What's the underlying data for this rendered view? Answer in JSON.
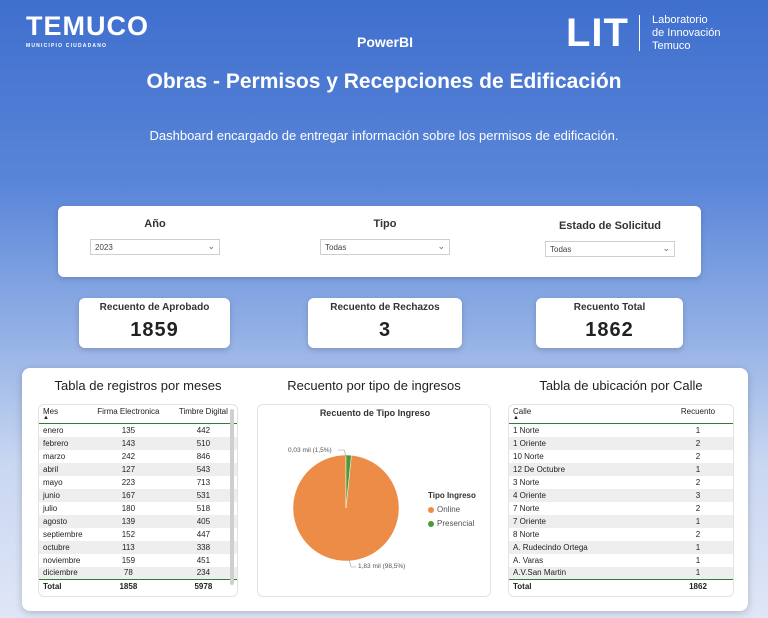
{
  "header": {
    "municipality_logo_text": "TEMUCO",
    "municipality_logo_sub": "MUNICIPIO CIUDADANO",
    "app_label": "PowerBI",
    "lit_logo": "LIT",
    "lit_text_1": "Laboratorio",
    "lit_text_2": "de Innovación",
    "lit_text_3": "Temuco",
    "title": "Obras - Permisos  y Recepciones de Edificación",
    "subtitle": "Dashboard encargado de entregar información sobre los permisos de edificación."
  },
  "filters": {
    "year": {
      "label": "Año",
      "value": "2023"
    },
    "type": {
      "label": "Tipo",
      "value": "Todas"
    },
    "status": {
      "label": "Estado de Solicitud",
      "value": "Todas"
    }
  },
  "kpis": {
    "approved": {
      "label": "Recuento de Aprobado",
      "value": "1859"
    },
    "rejected": {
      "label": "Recuento de Rechazos",
      "value": "3"
    },
    "total": {
      "label": "Recuento Total",
      "value": "1862"
    }
  },
  "months_table": {
    "title": "Tabla de registros por meses",
    "headers": [
      "Mes",
      "Firma Electronica",
      "Timbre Digital"
    ],
    "rows": [
      [
        "enero",
        "135",
        "442"
      ],
      [
        "febrero",
        "143",
        "510"
      ],
      [
        "marzo",
        "242",
        "846"
      ],
      [
        "abril",
        "127",
        "543"
      ],
      [
        "mayo",
        "223",
        "713"
      ],
      [
        "junio",
        "167",
        "531"
      ],
      [
        "julio",
        "180",
        "518"
      ],
      [
        "agosto",
        "139",
        "405"
      ],
      [
        "septiembre",
        "152",
        "447"
      ],
      [
        "octubre",
        "113",
        "338"
      ],
      [
        "noviembre",
        "159",
        "451"
      ],
      [
        "diciembre",
        "78",
        "234"
      ]
    ],
    "total": [
      "Total",
      "1858",
      "5978"
    ]
  },
  "pie_section": {
    "title": "Recuento por tipo de ingresos",
    "chart_title": "Recuento de Tipo Ingreso",
    "legend_title": "Tipo Ingreso"
  },
  "chart_data": {
    "type": "pie",
    "title": "Recuento de Tipo Ingreso",
    "categories": [
      "Online",
      "Presencial"
    ],
    "values": [
      1830,
      30
    ],
    "percent": [
      98.5,
      1.5
    ],
    "data_labels": [
      "1,83 mil (98,5%)",
      "0,03 mil (1,5%)"
    ],
    "colors": [
      "#ec8c47",
      "#4a9a3a"
    ],
    "legend_title": "Tipo Ingreso",
    "legend_position": "right"
  },
  "street_table": {
    "title": "Tabla de ubicación por Calle",
    "headers": [
      "Calle",
      "Recuento"
    ],
    "rows": [
      [
        "1 Norte",
        "1"
      ],
      [
        "1 Oriente",
        "2"
      ],
      [
        "10 Norte",
        "2"
      ],
      [
        "12 De Octubre",
        "1"
      ],
      [
        "3 Norte",
        "2"
      ],
      [
        "4 Oriente",
        "3"
      ],
      [
        "7 Norte",
        "2"
      ],
      [
        "7 Oriente",
        "1"
      ],
      [
        "8 Norte",
        "2"
      ],
      [
        "A. Rudecindo Ortega",
        "1"
      ],
      [
        "A. Varas",
        "1"
      ],
      [
        "A.V.San Martin",
        "1"
      ]
    ],
    "total": [
      "Total",
      "1862"
    ]
  }
}
